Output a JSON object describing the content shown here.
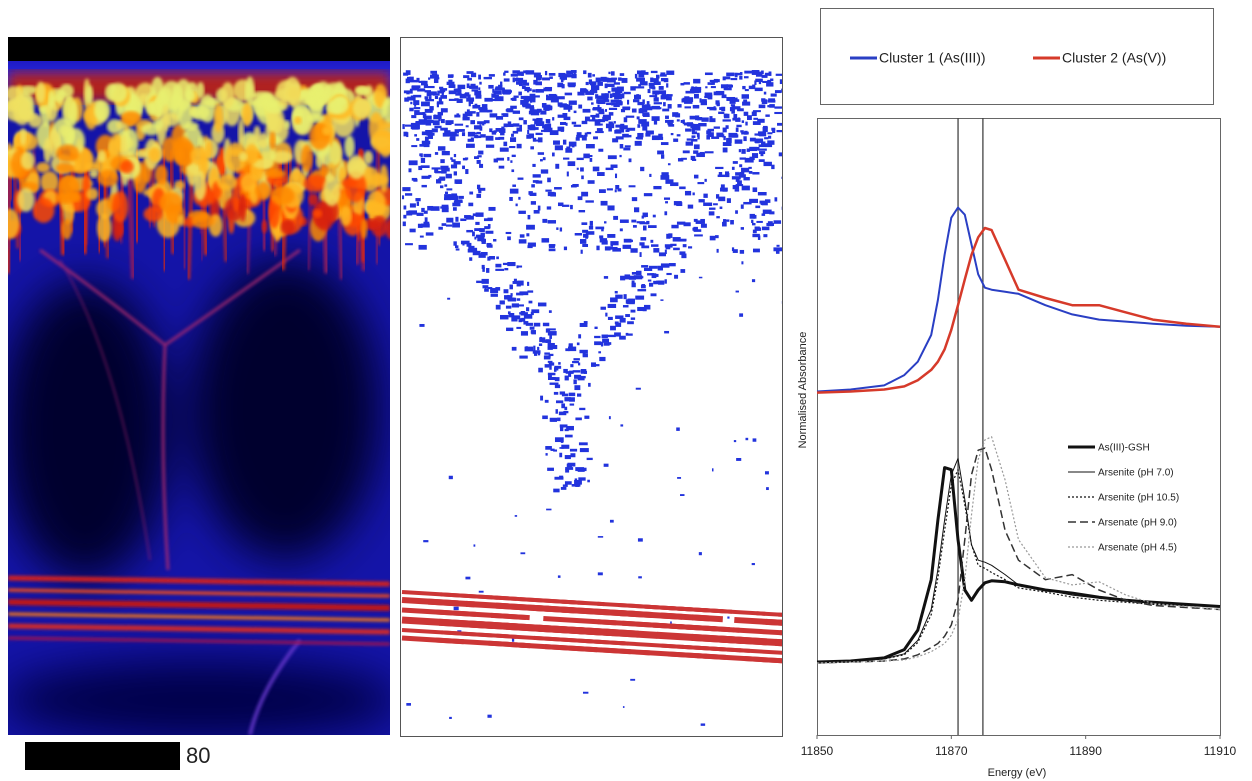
{
  "scale_bar": {
    "label": "80"
  },
  "chart_data": {
    "type": "line",
    "x_label": "Energy (eV)",
    "y_label": "Normalised Absorbance",
    "xlim": [
      11850,
      11910
    ],
    "xticks": [
      11850,
      11870,
      11890,
      11910
    ],
    "ylim": [
      0,
      6
    ],
    "vlines": [
      11871,
      11874.7
    ],
    "vline_color": "#444444",
    "x": [
      11850,
      11855,
      11860,
      11863,
      11865,
      11867,
      11868,
      11869,
      11870,
      11871,
      11872,
      11873,
      11874,
      11875,
      11876,
      11878,
      11880,
      11884,
      11888,
      11892,
      11896,
      11900,
      11905,
      11910
    ],
    "series": [
      {
        "name": "Cluster 1 (As(III))",
        "color": "#2a3fc4",
        "width": 2,
        "dash": "solid",
        "legend": "above",
        "values": [
          3.34,
          3.36,
          3.4,
          3.5,
          3.63,
          3.89,
          4.23,
          4.67,
          5.03,
          5.13,
          5.06,
          4.77,
          4.48,
          4.35,
          4.33,
          4.31,
          4.29,
          4.18,
          4.09,
          4.04,
          4.02,
          4.0,
          3.98,
          3.97
        ]
      },
      {
        "name": "Cluster 2 (As(V))",
        "color": "#d63a2a",
        "width": 2.5,
        "dash": "solid",
        "legend": "above",
        "values": [
          3.33,
          3.34,
          3.36,
          3.39,
          3.45,
          3.55,
          3.63,
          3.75,
          3.94,
          4.18,
          4.43,
          4.67,
          4.84,
          4.93,
          4.91,
          4.62,
          4.33,
          4.25,
          4.18,
          4.18,
          4.11,
          4.04,
          4.0,
          3.97
        ]
      },
      {
        "name": "As(III)-GSH",
        "color": "#111111",
        "width": 3,
        "dash": "solid",
        "legend": "inside",
        "values": [
          0.71,
          0.72,
          0.75,
          0.83,
          1.02,
          1.51,
          2.09,
          2.6,
          2.58,
          1.9,
          1.41,
          1.31,
          1.41,
          1.48,
          1.5,
          1.49,
          1.46,
          1.41,
          1.38,
          1.34,
          1.31,
          1.29,
          1.27,
          1.25
        ]
      },
      {
        "name": "Arsenite (pH 7.0)",
        "color": "#111111",
        "width": 1,
        "dash": "solid",
        "legend": "inside",
        "values": [
          0.71,
          0.72,
          0.74,
          0.79,
          0.92,
          1.22,
          1.61,
          2.09,
          2.53,
          2.69,
          2.29,
          1.85,
          1.7,
          1.68,
          1.65,
          1.56,
          1.46,
          1.41,
          1.36,
          1.33,
          1.31,
          1.29,
          1.27,
          1.25
        ]
      },
      {
        "name": "Arsenite (pH 10.5)",
        "color": "#111111",
        "width": 1.2,
        "dash": "dotted",
        "legend": "inside",
        "values": [
          0.71,
          0.72,
          0.74,
          0.78,
          0.9,
          1.17,
          1.53,
          1.99,
          2.43,
          2.58,
          2.24,
          1.85,
          1.65,
          1.62,
          1.58,
          1.51,
          1.43,
          1.39,
          1.34,
          1.31,
          1.29,
          1.27,
          1.26,
          1.25
        ]
      },
      {
        "name": "Arsenate (pH 9.0)",
        "color": "#333333",
        "width": 1.5,
        "dash": "dashed",
        "legend": "inside",
        "values": [
          0.7,
          0.71,
          0.72,
          0.74,
          0.78,
          0.85,
          0.89,
          0.96,
          1.07,
          1.31,
          1.9,
          2.53,
          2.77,
          2.79,
          2.58,
          1.99,
          1.7,
          1.51,
          1.56,
          1.41,
          1.31,
          1.26,
          1.24,
          1.22
        ]
      },
      {
        "name": "Arsenate (pH 4.5)",
        "color": "#999999",
        "width": 1.2,
        "dash": "dotted",
        "legend": "inside",
        "values": [
          0.7,
          0.71,
          0.72,
          0.73,
          0.76,
          0.81,
          0.85,
          0.89,
          0.97,
          1.12,
          1.51,
          2.14,
          2.68,
          2.87,
          2.9,
          2.48,
          1.9,
          1.53,
          1.46,
          1.49,
          1.36,
          1.28,
          1.25,
          1.22
        ]
      }
    ]
  }
}
